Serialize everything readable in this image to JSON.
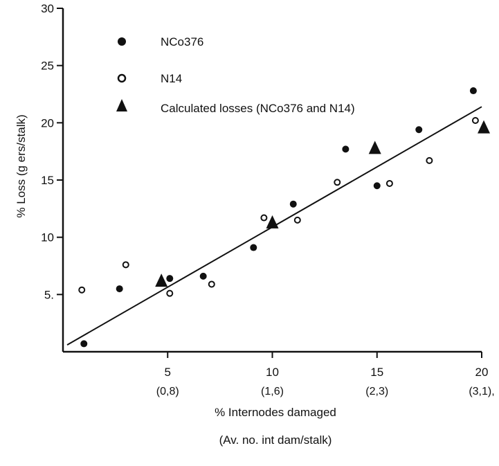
{
  "chart_data": {
    "type": "scatter",
    "title": "",
    "xlabel": "% Internodes damaged",
    "xlabel2": "(Av. no. int dam/stalk)",
    "ylabel": "% Loss (g ers/stalk)",
    "xlim": [
      0,
      20
    ],
    "ylim": [
      0,
      30
    ],
    "x_ticks": [
      5,
      10,
      15,
      20
    ],
    "x_tick_sublabels": [
      "(0,8)",
      "(1,6)",
      "(2,3)",
      "(3,1),"
    ],
    "y_ticks": [
      5,
      10,
      15,
      20,
      25,
      30
    ],
    "y_tick_labels": [
      "5.",
      "10",
      "15",
      "20",
      "25",
      "30"
    ],
    "grid": false,
    "legend_position": "top-left",
    "series": [
      {
        "name": "NCo376",
        "marker": "filled-circle",
        "points": [
          [
            1,
            0.7
          ],
          [
            2.7,
            5.5
          ],
          [
            5.1,
            6.4
          ],
          [
            6.7,
            6.6
          ],
          [
            9.1,
            9.1
          ],
          [
            11,
            12.9
          ],
          [
            13.5,
            17.7
          ],
          [
            15,
            14.5
          ],
          [
            17,
            19.4
          ],
          [
            19.6,
            22.8
          ]
        ]
      },
      {
        "name": "N14",
        "marker": "open-circle",
        "points": [
          [
            0.9,
            5.4
          ],
          [
            3,
            7.6
          ],
          [
            5.1,
            5.1
          ],
          [
            7.1,
            5.9
          ],
          [
            9.6,
            11.7
          ],
          [
            11.2,
            11.5
          ],
          [
            13.1,
            14.8
          ],
          [
            15.6,
            14.7
          ],
          [
            17.5,
            16.7
          ],
          [
            19.7,
            20.2
          ]
        ]
      },
      {
        "name": "Calculated losses (NCo376 and N14)",
        "marker": "filled-triangle",
        "points": [
          [
            4.7,
            6.1
          ],
          [
            10,
            11.2
          ],
          [
            14.9,
            17.7
          ],
          [
            20.1,
            19.5
          ]
        ]
      }
    ],
    "regression_line": {
      "from": [
        0.2,
        0.6
      ],
      "to": [
        20,
        21.4
      ]
    }
  }
}
